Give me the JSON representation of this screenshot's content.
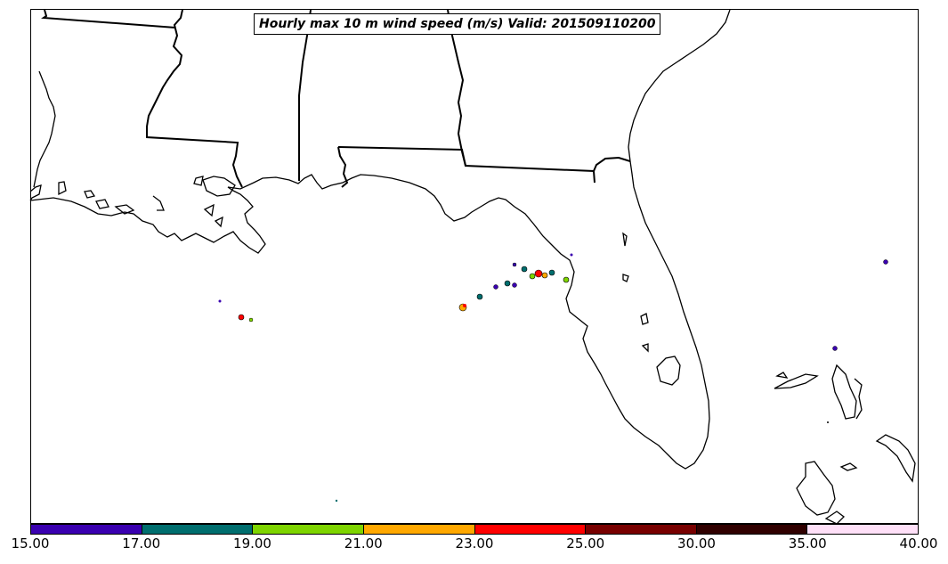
{
  "title": "Hourly max 10 m wind speed (m/s) Valid: 201509110200",
  "colorbar": {
    "ticks": [
      "15.00",
      "17.00",
      "19.00",
      "21.00",
      "23.00",
      "25.00",
      "30.00",
      "35.00",
      "40.00"
    ],
    "colors": [
      "#3a00b0",
      "#006e6e",
      "#7ed400",
      "#ffa800",
      "#ff0000",
      "#780000",
      "#300000",
      "#ffe0f8"
    ]
  },
  "colors": {
    "coastline": "#000000",
    "background": "#ffffff"
  }
}
